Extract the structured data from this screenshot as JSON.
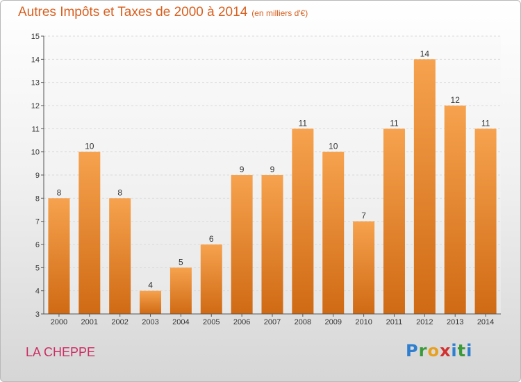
{
  "header": {
    "title": "Autres Impôts et Taxes de 2000 à 2014",
    "unit": "(en milliers d'€)"
  },
  "footer": {
    "commune": "LA CHEPPE",
    "logo": "Proxiti"
  },
  "colors": {
    "title": "#d85f1e",
    "commune": "#cc2d64",
    "bar_top": "#f6a24e",
    "bar_bottom": "#d06a14"
  },
  "chart_data": {
    "type": "bar",
    "title": "Autres Impôts et Taxes de 2000 à 2014",
    "subtitle": "(en milliers d'€)",
    "categories": [
      "2000",
      "2001",
      "2002",
      "2003",
      "2004",
      "2005",
      "2006",
      "2007",
      "2008",
      "2009",
      "2010",
      "2011",
      "2012",
      "2013",
      "2014"
    ],
    "values": [
      8,
      10,
      8,
      4,
      5,
      6,
      9,
      9,
      11,
      10,
      7,
      11,
      14,
      12,
      11
    ],
    "ylim": [
      3,
      15
    ],
    "yticks": [
      3,
      4,
      5,
      6,
      7,
      8,
      9,
      10,
      11,
      12,
      13,
      14,
      15
    ],
    "grid": true,
    "data_labels": true
  }
}
